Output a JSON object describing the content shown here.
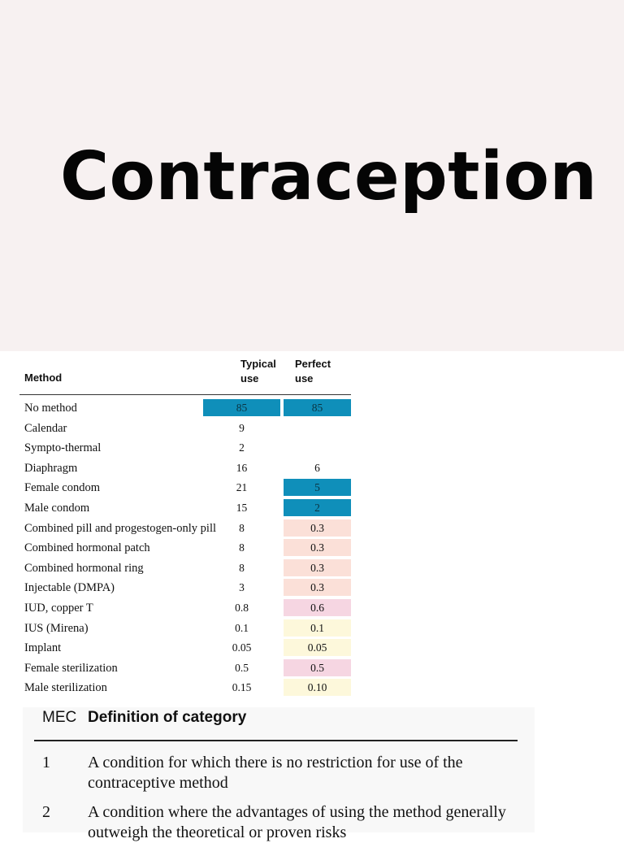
{
  "slide": {
    "title": "Contraception"
  },
  "table": {
    "headers": {
      "method": "Method",
      "typical": "Typical use",
      "perfect": "Perfect use"
    },
    "colors": {
      "blue": "#0f8fba",
      "peach": "#fbe0d8",
      "pink": "#f6d6e2",
      "yellow": "#fdf8db"
    },
    "rows": [
      {
        "method": "No method",
        "typical": "85",
        "perfect": "85",
        "typical_bg": "blue",
        "perfect_bg": "blue"
      },
      {
        "method": "Calendar",
        "typical": "9",
        "perfect": "",
        "typical_bg": "",
        "perfect_bg": ""
      },
      {
        "method": "Sympto-thermal",
        "typical": "2",
        "perfect": "",
        "typical_bg": "",
        "perfect_bg": ""
      },
      {
        "method": "Diaphragm",
        "typical": "16",
        "perfect": "6",
        "typical_bg": "",
        "perfect_bg": ""
      },
      {
        "method": "Female condom",
        "typical": "21",
        "perfect": "5",
        "typical_bg": "",
        "perfect_bg": "blue"
      },
      {
        "method": "Male condom",
        "typical": "15",
        "perfect": "2",
        "typical_bg": "",
        "perfect_bg": "blue"
      },
      {
        "method": "Combined pill and progestogen-only pill",
        "typical": "8",
        "perfect": "0.3",
        "typical_bg": "",
        "perfect_bg": "peach"
      },
      {
        "method": "Combined hormonal patch",
        "typical": "8",
        "perfect": "0.3",
        "typical_bg": "",
        "perfect_bg": "peach"
      },
      {
        "method": "Combined hormonal ring",
        "typical": "8",
        "perfect": "0.3",
        "typical_bg": "",
        "perfect_bg": "peach"
      },
      {
        "method": "Injectable (DMPA)",
        "typical": "3",
        "perfect": "0.3",
        "typical_bg": "",
        "perfect_bg": "peach"
      },
      {
        "method": "IUD, copper T",
        "typical": "0.8",
        "perfect": "0.6",
        "typical_bg": "",
        "perfect_bg": "pink"
      },
      {
        "method": "IUS (Mirena)",
        "typical": "0.1",
        "perfect": "0.1",
        "typical_bg": "",
        "perfect_bg": "yellow"
      },
      {
        "method": "Implant",
        "typical": "0.05",
        "perfect": "0.05",
        "typical_bg": "",
        "perfect_bg": "yellow"
      },
      {
        "method": "Female sterilization",
        "typical": "0.5",
        "perfect": "0.5",
        "typical_bg": "",
        "perfect_bg": "pink"
      },
      {
        "method": "Male sterilization",
        "typical": "0.15",
        "perfect": "0.10",
        "typical_bg": "",
        "perfect_bg": "yellow"
      }
    ]
  },
  "mec": {
    "header_mec": "MEC",
    "header_def": "Definition of category",
    "rows": [
      {
        "num": "1",
        "def": "A condition for which there is no restriction for use of the contraceptive method"
      },
      {
        "num": "2",
        "def": "A condition where the advantages of using the method generally outweigh the theoretical or proven risks"
      }
    ]
  }
}
